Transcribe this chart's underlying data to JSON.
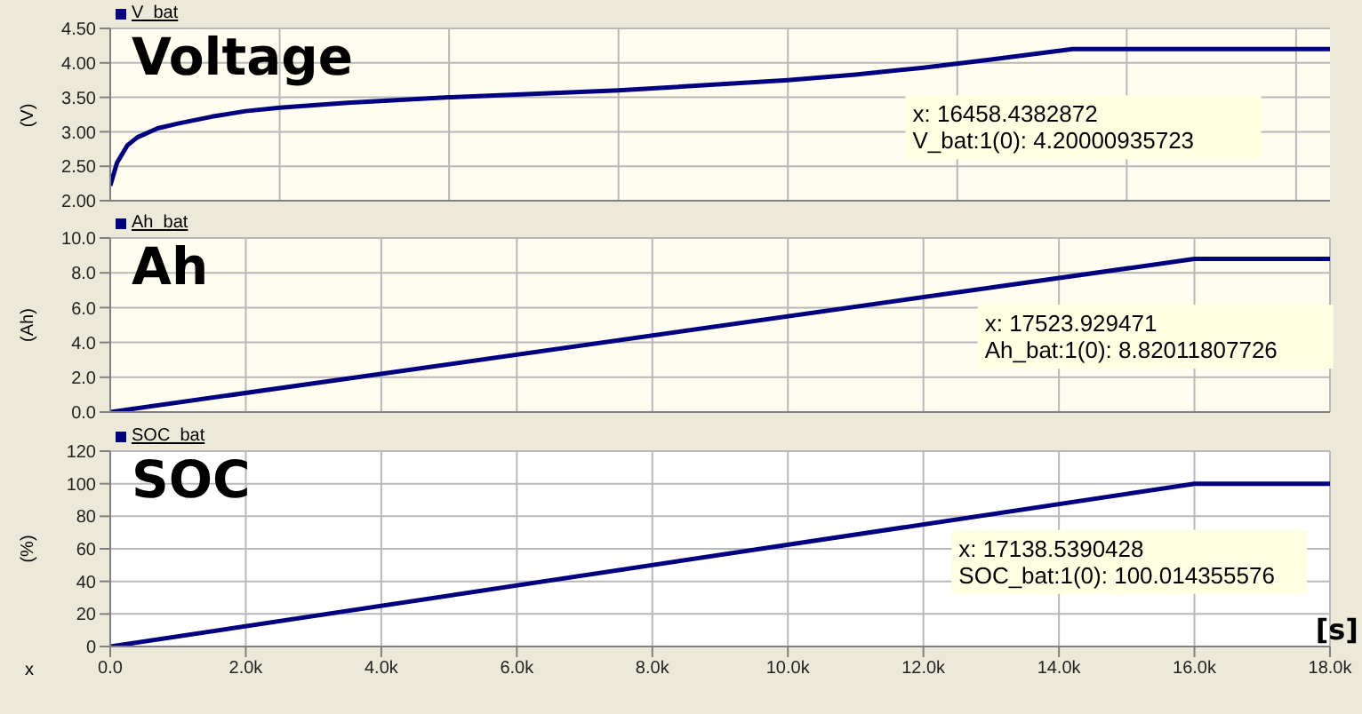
{
  "chart_data": [
    {
      "type": "line",
      "title": "Voltage",
      "ylabel": "(V)",
      "legend": "top left",
      "grid": true,
      "tick_labels": "y",
      "series": [
        {
          "name": "V_bat",
          "color": "#000080",
          "x": [
            0,
            100,
            250,
            400,
            700,
            1000,
            1500,
            2000,
            2500,
            3500,
            5000,
            7500,
            10000,
            11000,
            12000,
            13000,
            14200,
            16000,
            18000
          ],
          "values": [
            2.22,
            2.55,
            2.8,
            2.92,
            3.05,
            3.12,
            3.22,
            3.3,
            3.35,
            3.42,
            3.5,
            3.6,
            3.75,
            3.83,
            3.93,
            4.05,
            4.2,
            4.2,
            4.2
          ]
        }
      ],
      "xlim": [
        0,
        18000
      ],
      "xticks": [
        {
          "value": 0,
          "label": null
        },
        {
          "value": 2500,
          "label": null
        },
        {
          "value": 5000,
          "label": null
        },
        {
          "value": 7500,
          "label": null
        },
        {
          "value": 10000,
          "label": null
        },
        {
          "value": 12500,
          "label": null
        },
        {
          "value": 15000,
          "label": null
        },
        {
          "value": 17500,
          "label": null
        }
      ],
      "ylim": [
        2,
        4.5
      ],
      "yticks": [
        {
          "value": 2,
          "label": "2.00"
        },
        {
          "value": 2.5,
          "label": "2.50"
        },
        {
          "value": 3,
          "label": "3.00"
        },
        {
          "value": 3.5,
          "label": "3.50"
        },
        {
          "value": 4,
          "label": "4.00"
        },
        {
          "value": 4.5,
          "label": "4.50"
        }
      ],
      "annotations": [
        {
          "text": "x: 16458.4382872\nV_bat:1(0): 4.20000935723",
          "x": 16458.4382872,
          "y": 4.20000935723
        }
      ]
    },
    {
      "type": "line",
      "title": "Ah",
      "ylabel": "(Ah)",
      "legend": "top left",
      "grid": true,
      "tick_labels": "y",
      "series": [
        {
          "name": "Ah_bat",
          "color": "#000080",
          "x": [
            0,
            16000,
            18000
          ],
          "values": [
            0,
            8.8,
            8.8
          ]
        }
      ],
      "xlim": [
        0,
        18000
      ],
      "xticks": [
        {
          "value": 0,
          "label": null
        },
        {
          "value": 2000,
          "label": null
        },
        {
          "value": 4000,
          "label": null
        },
        {
          "value": 6000,
          "label": null
        },
        {
          "value": 8000,
          "label": null
        },
        {
          "value": 10000,
          "label": null
        },
        {
          "value": 12000,
          "label": null
        },
        {
          "value": 14000,
          "label": null
        },
        {
          "value": 16000,
          "label": null
        },
        {
          "value": 18000,
          "label": null
        }
      ],
      "ylim": [
        0,
        10
      ],
      "yticks": [
        {
          "value": 0,
          "label": "0.0"
        },
        {
          "value": 2,
          "label": "2.0"
        },
        {
          "value": 4,
          "label": "4.0"
        },
        {
          "value": 6,
          "label": "6.0"
        },
        {
          "value": 8,
          "label": "8.0"
        },
        {
          "value": 10,
          "label": "10.0"
        }
      ],
      "annotations": [
        {
          "text": "x: 17523.929471\nAh_bat:1(0): 8.82011807726",
          "x": 17523.929471,
          "y": 8.82011807726
        }
      ]
    },
    {
      "type": "line",
      "title": "SOC",
      "ylabel": "(%)",
      "xlabel": "x",
      "legend": "top left",
      "grid": true,
      "series": [
        {
          "name": "SOC_bat",
          "color": "#000080",
          "x": [
            0,
            16000,
            18000
          ],
          "values": [
            0,
            100,
            100
          ]
        }
      ],
      "xlim": [
        0,
        18000
      ],
      "xticks": [
        {
          "value": 0,
          "label": "0.0"
        },
        {
          "value": 2000,
          "label": "2.0k"
        },
        {
          "value": 4000,
          "label": "4.0k"
        },
        {
          "value": 6000,
          "label": "6.0k"
        },
        {
          "value": 8000,
          "label": "8.0k"
        },
        {
          "value": 10000,
          "label": "10.0k"
        },
        {
          "value": 12000,
          "label": "12.0k"
        },
        {
          "value": 14000,
          "label": "14.0k"
        },
        {
          "value": 16000,
          "label": "16.0k"
        },
        {
          "value": 18000,
          "label": "18.0k"
        }
      ],
      "ylim": [
        0,
        120
      ],
      "yticks": [
        0,
        20,
        40,
        60,
        80,
        100,
        120
      ],
      "annotations": [
        {
          "text": "x: 17138.5390428\nSOC_bat:1(0): 100.014355576",
          "x": 17138.5390428,
          "y": 100.014355576
        },
        "[s]"
      ]
    }
  ]
}
